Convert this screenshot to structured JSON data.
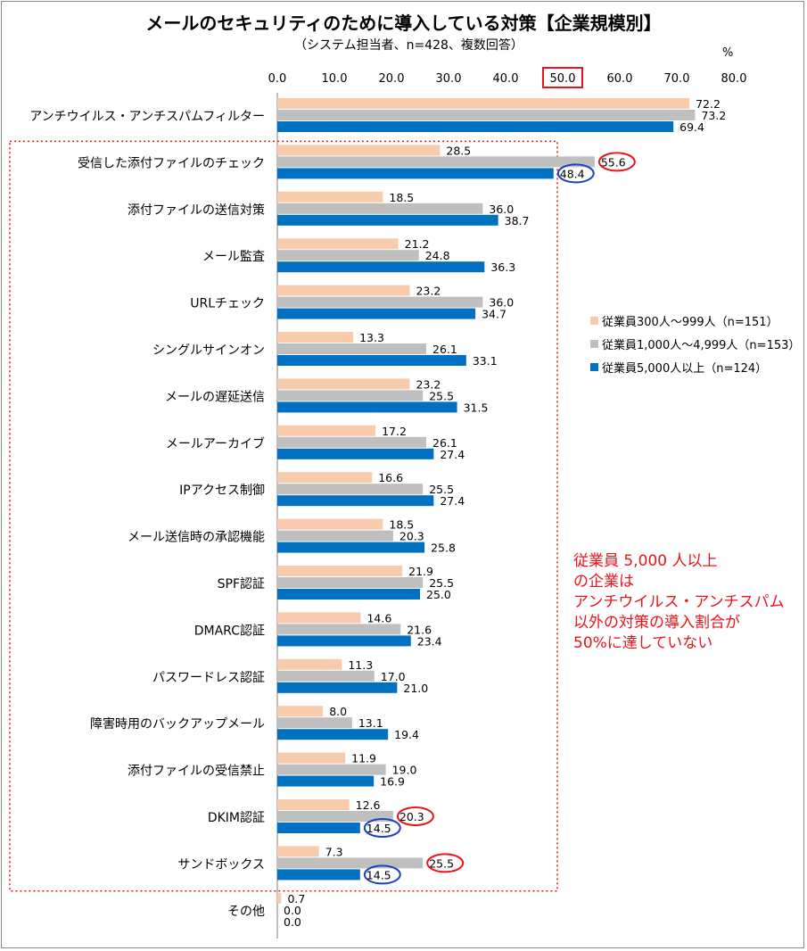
{
  "chart_data": {
    "type": "bar",
    "orientation": "horizontal",
    "title": "メールのセキュリティのために導入している対策【企業規模別】",
    "subtitle": "（システム担当者、n=428、複数回答）",
    "unit": "%",
    "xlim": [
      0,
      80
    ],
    "ticks": [
      "0.0",
      "10.0",
      "20.0",
      "30.0",
      "40.0",
      "50.0",
      "60.0",
      "70.0",
      "80.0"
    ],
    "highlighted_tick": "50.0",
    "grid": false,
    "legend_position": "right",
    "categories": [
      "アンチウイルス・アンチスパムフィルター",
      "受信した添付ファイルのチェック",
      "添付ファイルの送信対策",
      "メール監査",
      "URLチェック",
      "シングルサインオン",
      "メールの遅延送信",
      "メールアーカイブ",
      "IPアクセス制御",
      "メール送信時の承認機能",
      "SPF認証",
      "DMARC認証",
      "パスワードレス認証",
      "障害時用のバックアップメール",
      "添付ファイルの受信禁止",
      "DKIM認証",
      "サンドボックス",
      "その他"
    ],
    "series": [
      {
        "name": "従業員300人～999人（n=151）",
        "color": "#f8cbad",
        "values": [
          72.2,
          28.5,
          18.5,
          21.2,
          23.2,
          13.3,
          23.2,
          17.2,
          16.6,
          18.5,
          21.9,
          14.6,
          11.3,
          8.0,
          11.9,
          12.6,
          7.3,
          0.7
        ]
      },
      {
        "name": "従業員1,000人～4,999人（n=153）",
        "color": "#bfbfbf",
        "values": [
          73.2,
          55.6,
          36.0,
          24.8,
          36.0,
          26.1,
          25.5,
          26.1,
          25.5,
          20.3,
          25.5,
          21.6,
          17.0,
          13.1,
          19.0,
          20.3,
          25.5,
          0.0
        ]
      },
      {
        "name": "従業員5,000人以上（n=124）",
        "color": "#0070c0",
        "values": [
          69.4,
          48.4,
          38.7,
          36.3,
          34.7,
          33.1,
          31.5,
          27.4,
          27.4,
          25.8,
          25.0,
          23.4,
          21.0,
          19.4,
          16.9,
          14.5,
          14.5,
          0.0
        ]
      }
    ],
    "circled_values": [
      {
        "series": 1,
        "category": 1,
        "color": "#e8141c"
      },
      {
        "series": 2,
        "category": 1,
        "color": "#1f3fbf"
      },
      {
        "series": 1,
        "category": 15,
        "color": "#e8141c"
      },
      {
        "series": 2,
        "category": 15,
        "color": "#1f3fbf"
      },
      {
        "series": 1,
        "category": 16,
        "color": "#e8141c"
      },
      {
        "series": 2,
        "category": 16,
        "color": "#1f3fbf"
      }
    ],
    "highlight_box": {
      "from_category": 1,
      "to_category": 16,
      "color": "#e8141c",
      "style": "dotted"
    },
    "annotation": [
      "従業員 5,000 人以上",
      "の企業は",
      "アンチウイルス・アンチスパム",
      "以外の対策の導入割合が",
      "50%に達していない"
    ]
  }
}
